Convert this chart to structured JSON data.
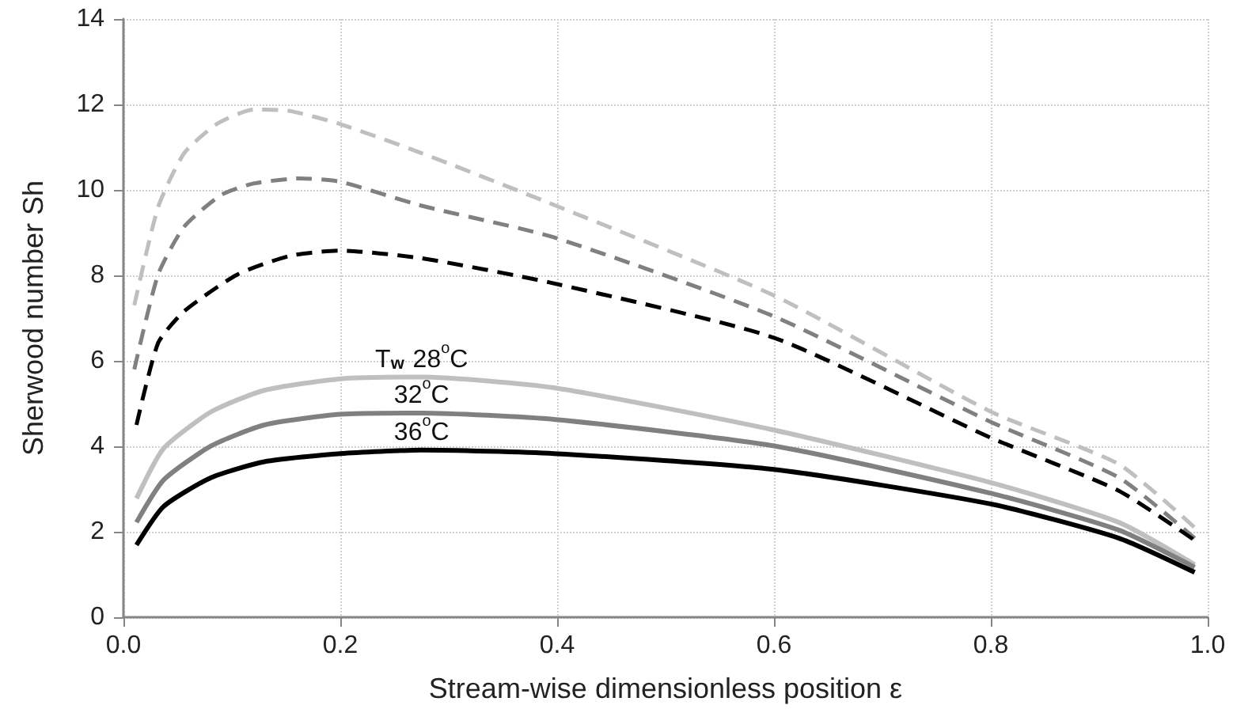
{
  "chart_data": {
    "type": "line",
    "xlabel": "Stream-wise dimensionless position ε",
    "ylabel": "Sherwood number Sh",
    "xlim": [
      0,
      1
    ],
    "xticks": [
      {
        "value": 0,
        "label": "0.0"
      },
      0.2,
      0.4,
      0.6,
      0.8,
      {
        "value": 1,
        "label": "1.0"
      }
    ],
    "ylim": [
      0,
      14
    ],
    "yticks": [
      0,
      2,
      4,
      6,
      8,
      10,
      12,
      14
    ],
    "grid": true,
    "marker": "none",
    "series": [
      {
        "color": "#bfbfbf",
        "line_style": "dashed",
        "x": [
          0.01,
          0.032,
          0.056,
          0.086,
          0.12,
          0.153,
          0.2,
          0.275,
          0.39,
          0.6,
          0.8,
          0.918,
          0.988
        ],
        "values": [
          7.3,
          9.6,
          10.86,
          11.54,
          11.88,
          11.85,
          11.54,
          10.86,
          9.72,
          7.53,
          4.81,
          3.58,
          2.1
        ]
      },
      {
        "color": "#808080",
        "line_style": "dashed",
        "x": [
          0.01,
          0.032,
          0.056,
          0.09,
          0.12,
          0.163,
          0.2,
          0.275,
          0.397,
          0.6,
          0.8,
          0.918,
          0.988
        ],
        "values": [
          5.8,
          8.02,
          9.14,
          9.88,
          10.15,
          10.27,
          10.19,
          9.63,
          8.89,
          7.04,
          4.57,
          3.27,
          1.85
        ]
      },
      {
        "color": "#000000",
        "line_style": "dashed",
        "x": [
          0.012,
          0.032,
          0.056,
          0.105,
          0.154,
          0.2,
          0.275,
          0.392,
          0.6,
          0.8,
          0.918,
          0.988
        ],
        "values": [
          4.5,
          6.42,
          7.16,
          8.02,
          8.46,
          8.58,
          8.4,
          7.84,
          6.54,
          4.2,
          2.96,
          1.8
        ]
      },
      {
        "name": "T$_{w}$ 28$^{o}$C",
        "color": "#bfbfbf",
        "line_style": "solid",
        "x": [
          0.012,
          0.037,
          0.081,
          0.13,
          0.2,
          0.275,
          0.397,
          0.6,
          0.8,
          0.918,
          0.988
        ],
        "values": [
          2.78,
          3.95,
          4.81,
          5.31,
          5.58,
          5.62,
          5.37,
          4.38,
          3.15,
          2.22,
          1.23
        ]
      },
      {
        "name": "32$^{o}$C",
        "color": "#808080",
        "line_style": "solid",
        "x": [
          0.012,
          0.037,
          0.081,
          0.13,
          0.2,
          0.275,
          0.397,
          0.6,
          0.8,
          0.918,
          0.988
        ],
        "values": [
          2.22,
          3.21,
          4.01,
          4.5,
          4.75,
          4.78,
          4.63,
          4.01,
          2.9,
          2.04,
          1.17
        ]
      },
      {
        "name": "36$^{o}$C",
        "color": "#000000",
        "line_style": "solid",
        "x": [
          0.012,
          0.037,
          0.081,
          0.13,
          0.2,
          0.275,
          0.397,
          0.6,
          0.8,
          0.918,
          0.988
        ],
        "values": [
          1.69,
          2.59,
          3.27,
          3.64,
          3.83,
          3.91,
          3.83,
          3.46,
          2.65,
          1.85,
          1.05
        ]
      }
    ]
  }
}
